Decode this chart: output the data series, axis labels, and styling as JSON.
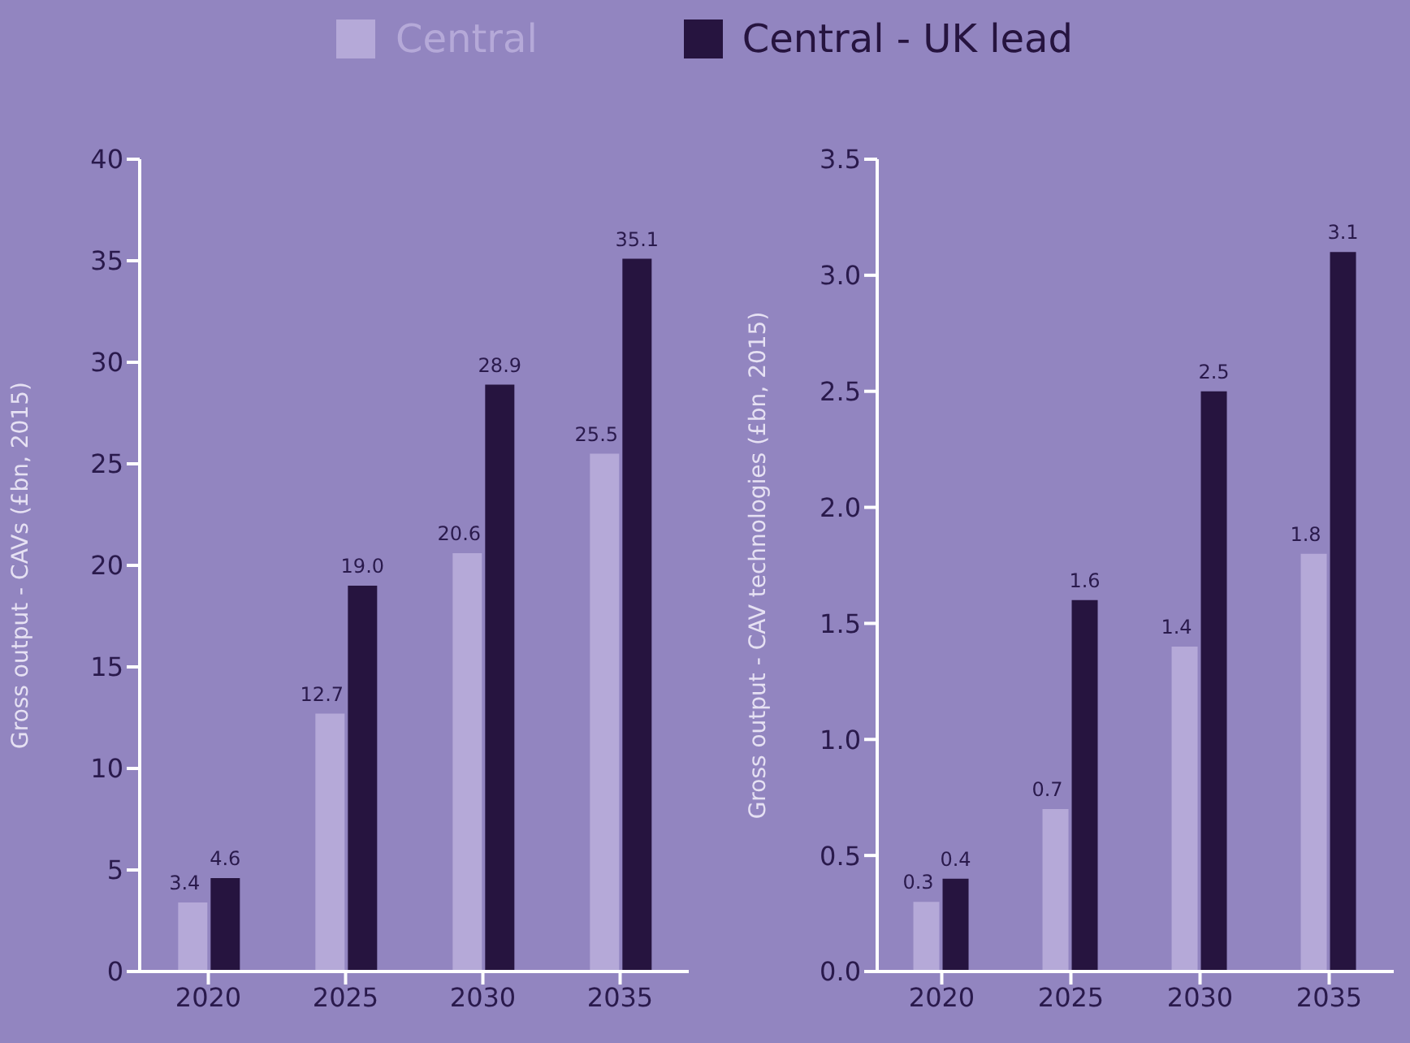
{
  "chart_data": [
    {
      "type": "bar",
      "categories": [
        "2020",
        "2025",
        "2030",
        "2035"
      ],
      "ylabel": "Gross output - CAVs (£bn, 2015)",
      "ylim": [
        0,
        40
      ],
      "yticks": [
        0,
        5,
        10,
        15,
        20,
        25,
        30,
        35,
        40
      ],
      "legend": "top",
      "series": [
        {
          "name": "Central",
          "color": "#b5a9d8",
          "values": [
            3.4,
            12.7,
            20.6,
            25.5
          ],
          "value_labels": [
            "3.4",
            "12.7",
            "20.6",
            "25.5"
          ]
        },
        {
          "name": "Central - UK lead",
          "color": "#26143f",
          "values": [
            4.6,
            19.0,
            28.9,
            35.1
          ],
          "value_labels": [
            "4.6",
            "19.0",
            "28.9",
            "35.1"
          ]
        }
      ]
    },
    {
      "type": "bar",
      "categories": [
        "2020",
        "2025",
        "2030",
        "2035"
      ],
      "ylabel": "Gross output - CAV technologies (£bn, 2015)",
      "ylim": [
        0,
        3.5
      ],
      "yticks": [
        {
          "value": 0,
          "label": "0.0"
        },
        0.5,
        {
          "value": 1,
          "label": "1.0"
        },
        1.5,
        {
          "value": 2,
          "label": "2.0"
        },
        2.5,
        {
          "value": 3,
          "label": "3.0"
        },
        3.5
      ],
      "data_labels": true,
      "series": [
        {
          "color": "#b5a9d8",
          "values": [
            0.3,
            0.7,
            1.4,
            1.8
          ]
        },
        {
          "color": "#26143f",
          "values": [
            0.4,
            1.6,
            2.5,
            3.1
          ]
        }
      ]
    }
  ]
}
